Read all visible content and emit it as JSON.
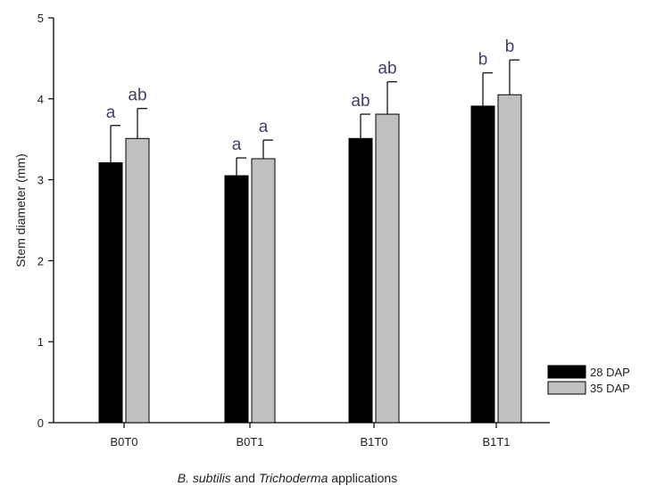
{
  "chart_data": {
    "type": "bar",
    "categories": [
      "B0T0",
      "B0T1",
      "B1T0",
      "B1T1"
    ],
    "series": [
      {
        "name": "28 DAP",
        "values": [
          3.21,
          3.05,
          3.51,
          3.91
        ],
        "errors": [
          0.46,
          0.22,
          0.3,
          0.41
        ],
        "letters": [
          "a",
          "a",
          "ab",
          "b"
        ],
        "color": "#000000"
      },
      {
        "name": "35 DAP",
        "values": [
          3.51,
          3.26,
          3.81,
          4.05
        ],
        "errors": [
          0.37,
          0.23,
          0.4,
          0.43
        ],
        "letters": [
          "ab",
          "a",
          "ab",
          "b"
        ],
        "color": "#c0c0c0"
      }
    ],
    "ylabel": "Stem diameter (mm)",
    "xlabel_parts": [
      {
        "text": "B. subtilis",
        "italic": true
      },
      {
        "text": " and ",
        "italic": false
      },
      {
        "text": "Trichoderma",
        "italic": true
      },
      {
        "text": " applications",
        "italic": false
      }
    ],
    "ylim": [
      0,
      5
    ],
    "yticks": [
      0,
      1,
      2,
      3,
      4,
      5
    ],
    "grid": false,
    "legend_position": "bottom-right",
    "sig_letter_color": "#4a3c6e"
  }
}
